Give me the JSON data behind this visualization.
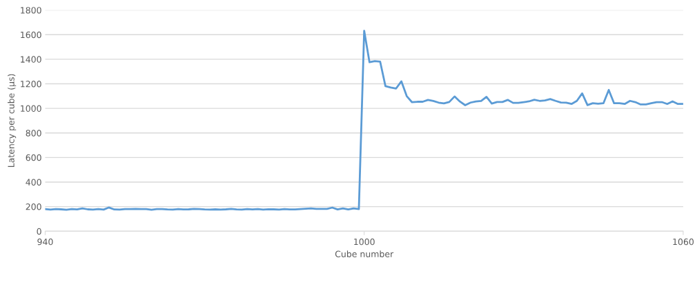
{
  "chart_data": {
    "type": "line",
    "xlabel": "Cube number",
    "ylabel": "Latency per cube (µs)",
    "xlim": [
      940,
      1060
    ],
    "xticks": [
      940,
      1000,
      1060
    ],
    "ylim": [
      0,
      1800
    ],
    "yticks": [
      0,
      200,
      400,
      600,
      800,
      1000,
      1200,
      1400,
      1600,
      1800
    ],
    "grid": "y",
    "marker": "none",
    "line_style": "solid",
    "x": [
      940,
      941,
      942,
      943,
      944,
      945,
      946,
      947,
      948,
      949,
      950,
      951,
      952,
      953,
      954,
      955,
      956,
      957,
      958,
      959,
      960,
      961,
      962,
      963,
      964,
      965,
      966,
      967,
      968,
      969,
      970,
      971,
      972,
      973,
      974,
      975,
      976,
      977,
      978,
      979,
      980,
      981,
      982,
      983,
      984,
      985,
      986,
      987,
      988,
      989,
      990,
      991,
      992,
      993,
      994,
      995,
      996,
      997,
      998,
      999,
      1000,
      1001,
      1002,
      1003,
      1004,
      1005,
      1006,
      1007,
      1008,
      1009,
      1010,
      1011,
      1012,
      1013,
      1014,
      1015,
      1016,
      1017,
      1018,
      1019,
      1020,
      1021,
      1022,
      1023,
      1024,
      1025,
      1026,
      1027,
      1028,
      1029,
      1030,
      1031,
      1032,
      1033,
      1034,
      1035,
      1036,
      1037,
      1038,
      1039,
      1040,
      1041,
      1042,
      1043,
      1044,
      1045,
      1046,
      1047,
      1048,
      1049,
      1050,
      1051,
      1052,
      1053,
      1054,
      1055,
      1056,
      1057,
      1058,
      1059,
      1060
    ],
    "series": [
      {
        "color": "#5b9bd5",
        "values": [
          180,
          176,
          180,
          178,
          175,
          180,
          177,
          186,
          178,
          176,
          180,
          176,
          193,
          177,
          176,
          180,
          180,
          181,
          180,
          180,
          175,
          180,
          180,
          177,
          176,
          180,
          177,
          178,
          181,
          180,
          177,
          176,
          178,
          176,
          178,
          181,
          177,
          176,
          180,
          177,
          180,
          176,
          179,
          178,
          176,
          180,
          177,
          177,
          180,
          183,
          186,
          182,
          181,
          182,
          192,
          177,
          186,
          177,
          186,
          180,
          1632,
          1376,
          1385,
          1381,
          1181,
          1170,
          1162,
          1220,
          1100,
          1050,
          1054,
          1054,
          1069,
          1060,
          1047,
          1041,
          1052,
          1097,
          1056,
          1026,
          1047,
          1056,
          1060,
          1094,
          1039,
          1052,
          1052,
          1069,
          1045,
          1045,
          1051,
          1057,
          1070,
          1061,
          1065,
          1076,
          1061,
          1048,
          1046,
          1036,
          1061,
          1122,
          1027,
          1042,
          1038,
          1042,
          1150,
          1042,
          1042,
          1036,
          1061,
          1051,
          1032,
          1032,
          1042,
          1051,
          1051,
          1036,
          1057,
          1036,
          1036
        ]
      }
    ]
  }
}
